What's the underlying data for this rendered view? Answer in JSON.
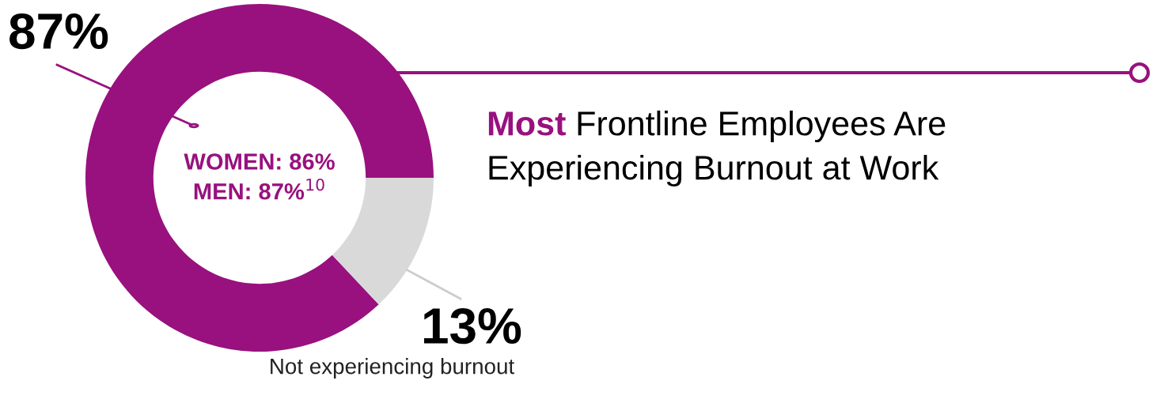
{
  "chart_data": {
    "type": "donut",
    "title": "Most Frontline Employees Are Experiencing Burnout at Work",
    "categories": [
      null,
      "Not experiencing burnout"
    ],
    "values": [
      87,
      13
    ],
    "colors": [
      "#98117e",
      "#d9d9d9"
    ],
    "value_labels": [
      "87%",
      "13%"
    ],
    "annotations": [
      "WOMEN: 86%",
      "MEN: 87%$^{10}$"
    ]
  }
}
